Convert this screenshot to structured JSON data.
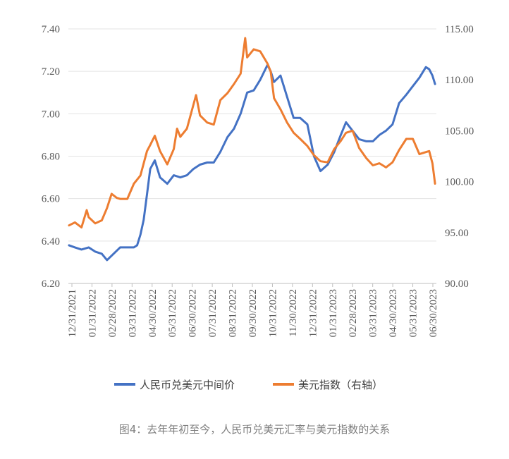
{
  "caption": "图4：去年年初至今，人民币兑美元汇率与美元指数的关系",
  "chart_data": {
    "type": "line",
    "title": "",
    "left_axis": {
      "ylim": [
        6.2,
        7.4
      ],
      "ticks": [
        "7.40",
        "7.20",
        "7.00",
        "6.80",
        "6.60",
        "6.40",
        "6.20"
      ]
    },
    "right_axis": {
      "ylim": [
        90,
        115
      ],
      "ticks": [
        "115.00",
        "110.00",
        "105.00",
        "100.00",
        "95.00",
        "90.00"
      ]
    },
    "x_ticks": [
      "12/31/2021",
      "01/31/2022",
      "02/28/2022",
      "03/31/2022",
      "04/30/2022",
      "05/31/2022",
      "06/30/2022",
      "07/31/2022",
      "08/31/2022",
      "09/30/2022",
      "10/31/2022",
      "11/30/2022",
      "12/31/2022",
      "01/31/2023",
      "02/28/2023",
      "03/31/2023",
      "04/30/2023",
      "05/31/2023",
      "06/30/2023"
    ],
    "legend_position": "bottom",
    "grid": true,
    "series": [
      {
        "name": "人民币兑美元中间价",
        "axis": "left",
        "color": "#4472C4",
        "x": [
          "2022-01-01",
          "2022-01-10",
          "2022-01-20",
          "2022-01-31",
          "2022-02-10",
          "2022-02-20",
          "2022-02-28",
          "2022-03-10",
          "2022-03-20",
          "2022-03-31",
          "2022-04-10",
          "2022-04-15",
          "2022-04-20",
          "2022-04-25",
          "2022-04-30",
          "2022-05-05",
          "2022-05-12",
          "2022-05-20",
          "2022-05-31",
          "2022-06-10",
          "2022-06-20",
          "2022-06-30",
          "2022-07-10",
          "2022-07-20",
          "2022-07-31",
          "2022-08-10",
          "2022-08-20",
          "2022-08-31",
          "2022-09-10",
          "2022-09-20",
          "2022-09-30",
          "2022-10-10",
          "2022-10-20",
          "2022-10-31",
          "2022-11-05",
          "2022-11-10",
          "2022-11-20",
          "2022-11-30",
          "2022-12-10",
          "2022-12-20",
          "2022-12-31",
          "2023-01-10",
          "2023-01-20",
          "2023-01-31",
          "2023-02-10",
          "2023-02-20",
          "2023-02-28",
          "2023-03-10",
          "2023-03-20",
          "2023-03-31",
          "2023-04-10",
          "2023-04-20",
          "2023-04-30",
          "2023-05-10",
          "2023-05-20",
          "2023-05-31",
          "2023-06-10",
          "2023-06-20",
          "2023-06-30",
          "2023-07-05",
          "2023-07-10",
          "2023-07-14"
        ],
        "values": [
          6.38,
          6.37,
          6.36,
          6.37,
          6.35,
          6.34,
          6.31,
          6.34,
          6.37,
          6.37,
          6.37,
          6.38,
          6.43,
          6.5,
          6.62,
          6.74,
          6.78,
          6.7,
          6.67,
          6.71,
          6.7,
          6.71,
          6.74,
          6.76,
          6.77,
          6.77,
          6.82,
          6.89,
          6.93,
          7.0,
          7.1,
          7.11,
          7.16,
          7.23,
          7.2,
          7.15,
          7.18,
          7.08,
          6.98,
          6.98,
          6.95,
          6.8,
          6.73,
          6.76,
          6.82,
          6.9,
          6.96,
          6.92,
          6.88,
          6.87,
          6.87,
          6.9,
          6.92,
          6.95,
          7.05,
          7.09,
          7.13,
          7.17,
          7.22,
          7.21,
          7.18,
          7.14
        ]
      },
      {
        "name": "美元指数（右轴）",
        "axis": "right",
        "color": "#ED7D31",
        "x": [
          "2022-01-01",
          "2022-01-10",
          "2022-01-20",
          "2022-01-28",
          "2022-01-31",
          "2022-02-10",
          "2022-02-20",
          "2022-02-28",
          "2022-03-07",
          "2022-03-15",
          "2022-03-20",
          "2022-03-31",
          "2022-04-10",
          "2022-04-20",
          "2022-04-30",
          "2022-05-05",
          "2022-05-12",
          "2022-05-20",
          "2022-05-31",
          "2022-06-10",
          "2022-06-15",
          "2022-06-20",
          "2022-06-30",
          "2022-07-14",
          "2022-07-20",
          "2022-07-31",
          "2022-08-10",
          "2022-08-20",
          "2022-08-31",
          "2022-09-10",
          "2022-09-20",
          "2022-09-27",
          "2022-09-30",
          "2022-10-10",
          "2022-10-20",
          "2022-10-31",
          "2022-11-05",
          "2022-11-10",
          "2022-11-20",
          "2022-11-30",
          "2022-12-10",
          "2022-12-20",
          "2022-12-31",
          "2023-01-10",
          "2023-01-20",
          "2023-01-31",
          "2023-02-10",
          "2023-02-20",
          "2023-02-28",
          "2023-03-10",
          "2023-03-20",
          "2023-03-31",
          "2023-04-10",
          "2023-04-20",
          "2023-04-30",
          "2023-05-10",
          "2023-05-20",
          "2023-05-31",
          "2023-06-10",
          "2023-06-20",
          "2023-06-30",
          "2023-07-05",
          "2023-07-10",
          "2023-07-14"
        ],
        "values": [
          95.7,
          96.0,
          95.5,
          97.2,
          96.5,
          95.9,
          96.2,
          97.4,
          98.8,
          98.4,
          98.3,
          98.3,
          99.8,
          100.6,
          103.0,
          103.6,
          104.5,
          103.0,
          101.7,
          103.2,
          105.2,
          104.4,
          105.2,
          108.5,
          106.5,
          105.8,
          105.6,
          108.0,
          108.7,
          109.6,
          110.6,
          114.1,
          112.2,
          113.0,
          112.8,
          111.6,
          110.8,
          108.2,
          107.1,
          105.8,
          104.8,
          104.2,
          103.5,
          102.6,
          102.0,
          101.9,
          103.2,
          104.0,
          104.8,
          105.0,
          103.3,
          102.3,
          101.6,
          101.8,
          101.4,
          101.9,
          103.1,
          104.2,
          104.2,
          102.7,
          102.9,
          103.0,
          101.8,
          99.8
        ]
      }
    ]
  }
}
